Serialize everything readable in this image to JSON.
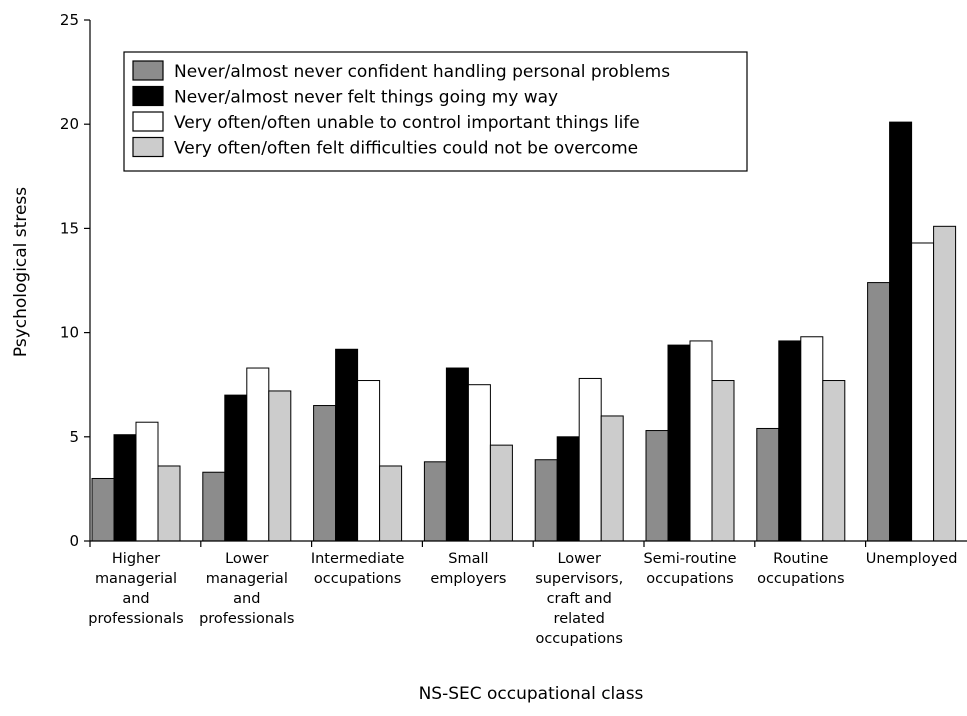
{
  "chart_data": {
    "type": "bar",
    "title": "",
    "xlabel": "NS-SEC occupational class",
    "ylabel": "Psychological stress",
    "ylim": [
      0,
      25
    ],
    "yticks": [
      0,
      5,
      10,
      15,
      20,
      25
    ],
    "grid": false,
    "legend_position": "top-left",
    "categories": [
      [
        "Higher",
        "managerial",
        "and",
        "professionals"
      ],
      [
        "Lower",
        "managerial",
        "and",
        "professionals"
      ],
      [
        "Intermediate",
        "occupations"
      ],
      [
        "Small",
        "employers"
      ],
      [
        "Lower",
        "supervisors,",
        "craft and",
        "related",
        "occupations"
      ],
      [
        "Semi-routine",
        "occupations"
      ],
      [
        "Routine",
        "occupations"
      ],
      [
        "Unemployed"
      ]
    ],
    "series": [
      {
        "name": "Never/almost never confident handling personal problems",
        "color": "#8c8c8c",
        "values": [
          3.0,
          3.3,
          6.5,
          3.8,
          3.9,
          5.3,
          5.4,
          12.4
        ]
      },
      {
        "name": "Never/almost never felt things going my way",
        "color": "#000000",
        "values": [
          5.1,
          7.0,
          9.2,
          8.3,
          5.0,
          9.4,
          9.6,
          20.1
        ]
      },
      {
        "name": "Very often/often unable to control important things life",
        "color": "#ffffff",
        "values": [
          5.7,
          8.3,
          7.7,
          7.5,
          7.8,
          9.6,
          9.8,
          14.3
        ]
      },
      {
        "name": "Very often/often felt difficulties could not be overcome",
        "color": "#cccccc",
        "values": [
          3.6,
          7.2,
          3.6,
          4.6,
          6.0,
          7.7,
          7.7,
          15.1
        ]
      }
    ]
  }
}
